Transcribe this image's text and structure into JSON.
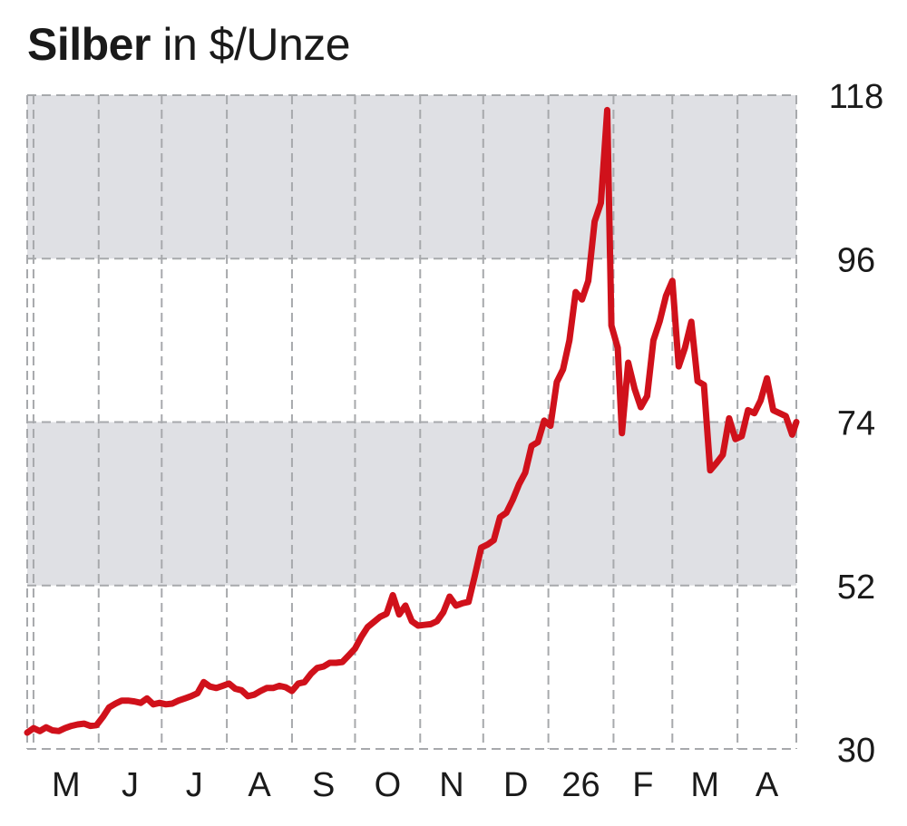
{
  "title": {
    "bold": "Silber",
    "rest": " in $/Unze"
  },
  "colors": {
    "line": "#d0111b",
    "band": "#dfe0e4",
    "grid": "#a7a9ac",
    "text": "#1a1a1a"
  },
  "chart_data": {
    "type": "line",
    "title": "Silber in $/Unze",
    "xlabel": "",
    "ylabel": "",
    "x_range": [
      "2025-04-28",
      "2026-04-29"
    ],
    "ylim": [
      30,
      118
    ],
    "y_ticks": [
      30,
      52,
      74,
      96,
      118
    ],
    "grid": true,
    "shaded_bands": [
      [
        52,
        74
      ],
      [
        96,
        118
      ]
    ],
    "x_ticks": [
      {
        "label": "M",
        "date": "2025-05-01"
      },
      {
        "label": "J",
        "date": "2025-06-01"
      },
      {
        "label": "J",
        "date": "2025-07-01"
      },
      {
        "label": "A",
        "date": "2025-08-01"
      },
      {
        "label": "S",
        "date": "2025-09-01"
      },
      {
        "label": "O",
        "date": "2025-10-01"
      },
      {
        "label": "N",
        "date": "2025-11-01"
      },
      {
        "label": "D",
        "date": "2025-12-01"
      },
      {
        "label": "26",
        "date": "2026-01-01"
      },
      {
        "label": "F",
        "date": "2026-02-01"
      },
      {
        "label": "M",
        "date": "2026-03-01"
      },
      {
        "label": "A",
        "date": "2026-04-01"
      }
    ],
    "series": [
      {
        "values": [
          [
            "2025-04-28",
            32.2
          ],
          [
            "2025-05-01",
            32.8
          ],
          [
            "2025-05-04",
            32.4
          ],
          [
            "2025-05-07",
            32.9
          ],
          [
            "2025-05-10",
            32.5
          ],
          [
            "2025-05-13",
            32.4
          ],
          [
            "2025-05-16",
            32.8
          ],
          [
            "2025-05-19",
            33.1
          ],
          [
            "2025-05-22",
            33.3
          ],
          [
            "2025-05-25",
            33.4
          ],
          [
            "2025-05-28",
            33.1
          ],
          [
            "2025-05-31",
            33.2
          ],
          [
            "2025-06-03",
            34.3
          ],
          [
            "2025-06-06",
            35.6
          ],
          [
            "2025-06-09",
            36.1
          ],
          [
            "2025-06-12",
            36.5
          ],
          [
            "2025-06-15",
            36.5
          ],
          [
            "2025-06-18",
            36.4
          ],
          [
            "2025-06-21",
            36.2
          ],
          [
            "2025-06-24",
            36.8
          ],
          [
            "2025-06-27",
            36.0
          ],
          [
            "2025-06-30",
            36.2
          ],
          [
            "2025-07-03",
            36.0
          ],
          [
            "2025-07-06",
            36.1
          ],
          [
            "2025-07-09",
            36.5
          ],
          [
            "2025-07-12",
            36.8
          ],
          [
            "2025-07-15",
            37.1
          ],
          [
            "2025-07-18",
            37.5
          ],
          [
            "2025-07-21",
            39.0
          ],
          [
            "2025-07-24",
            38.4
          ],
          [
            "2025-07-27",
            38.2
          ],
          [
            "2025-07-30",
            38.5
          ],
          [
            "2025-08-02",
            38.8
          ],
          [
            "2025-08-05",
            38.1
          ],
          [
            "2025-08-08",
            37.9
          ],
          [
            "2025-08-11",
            37.1
          ],
          [
            "2025-08-14",
            37.3
          ],
          [
            "2025-08-17",
            37.8
          ],
          [
            "2025-08-20",
            38.2
          ],
          [
            "2025-08-23",
            38.2
          ],
          [
            "2025-08-26",
            38.5
          ],
          [
            "2025-08-29",
            38.3
          ],
          [
            "2025-09-01",
            37.8
          ],
          [
            "2025-09-04",
            38.8
          ],
          [
            "2025-09-07",
            39.0
          ],
          [
            "2025-09-10",
            40.1
          ],
          [
            "2025-09-13",
            40.9
          ],
          [
            "2025-09-16",
            41.1
          ],
          [
            "2025-09-19",
            41.6
          ],
          [
            "2025-09-22",
            41.6
          ],
          [
            "2025-09-25",
            41.7
          ],
          [
            "2025-09-28",
            42.6
          ],
          [
            "2025-10-01",
            43.5
          ],
          [
            "2025-10-04",
            45.1
          ],
          [
            "2025-10-07",
            46.4
          ],
          [
            "2025-10-10",
            47.1
          ],
          [
            "2025-10-13",
            47.8
          ],
          [
            "2025-10-16",
            48.2
          ],
          [
            "2025-10-19",
            50.7
          ],
          [
            "2025-10-22",
            48.1
          ],
          [
            "2025-10-25",
            49.3
          ],
          [
            "2025-10-28",
            47.2
          ],
          [
            "2025-10-31",
            46.6
          ],
          [
            "2025-11-03",
            46.7
          ],
          [
            "2025-11-06",
            46.8
          ],
          [
            "2025-11-09",
            47.2
          ],
          [
            "2025-11-12",
            48.4
          ],
          [
            "2025-11-15",
            50.5
          ],
          [
            "2025-11-18",
            49.3
          ],
          [
            "2025-11-21",
            49.6
          ],
          [
            "2025-11-24",
            49.8
          ],
          [
            "2025-11-27",
            53.3
          ],
          [
            "2025-11-30",
            57.1
          ],
          [
            "2025-12-03",
            57.5
          ],
          [
            "2025-12-06",
            58.1
          ],
          [
            "2025-12-09",
            61.2
          ],
          [
            "2025-12-12",
            61.8
          ],
          [
            "2025-12-15",
            63.5
          ],
          [
            "2025-12-18",
            65.6
          ],
          [
            "2025-12-21",
            67.2
          ],
          [
            "2025-12-24",
            70.8
          ],
          [
            "2025-12-27",
            71.3
          ],
          [
            "2025-12-30",
            74.2
          ],
          [
            "2026-01-02",
            73.5
          ],
          [
            "2026-01-05",
            79.4
          ],
          [
            "2026-01-08",
            81.1
          ],
          [
            "2026-01-11",
            85.0
          ],
          [
            "2026-01-14",
            91.5
          ],
          [
            "2026-01-17",
            90.5
          ],
          [
            "2026-01-20",
            93.0
          ],
          [
            "2026-01-23",
            101.0
          ],
          [
            "2026-01-26",
            103.5
          ],
          [
            "2026-01-29",
            116.0
          ],
          [
            "2026-01-31",
            87.0
          ],
          [
            "2026-02-03",
            84.0
          ],
          [
            "2026-02-05",
            72.5
          ],
          [
            "2026-02-08",
            82.0
          ],
          [
            "2026-02-11",
            78.5
          ],
          [
            "2026-02-14",
            76.0
          ],
          [
            "2026-02-17",
            77.5
          ],
          [
            "2026-02-20",
            85.0
          ],
          [
            "2026-02-23",
            87.6
          ],
          [
            "2026-02-26",
            91.0
          ],
          [
            "2026-03-01",
            93.0
          ],
          [
            "2026-03-04",
            81.5
          ],
          [
            "2026-03-07",
            84.0
          ],
          [
            "2026-03-10",
            87.5
          ],
          [
            "2026-03-13",
            79.5
          ],
          [
            "2026-03-16",
            79.0
          ],
          [
            "2026-03-19",
            67.5
          ],
          [
            "2026-03-22",
            68.5
          ],
          [
            "2026-03-25",
            69.6
          ],
          [
            "2026-03-28",
            74.5
          ],
          [
            "2026-03-31",
            71.7
          ],
          [
            "2026-04-03",
            72.1
          ],
          [
            "2026-04-06",
            75.6
          ],
          [
            "2026-04-09",
            75.2
          ],
          [
            "2026-04-12",
            76.9
          ],
          [
            "2026-04-15",
            79.9
          ],
          [
            "2026-04-18",
            75.6
          ],
          [
            "2026-04-21",
            75.2
          ],
          [
            "2026-04-24",
            74.8
          ],
          [
            "2026-04-27",
            72.3
          ],
          [
            "2026-04-29",
            74.0
          ]
        ]
      }
    ]
  }
}
